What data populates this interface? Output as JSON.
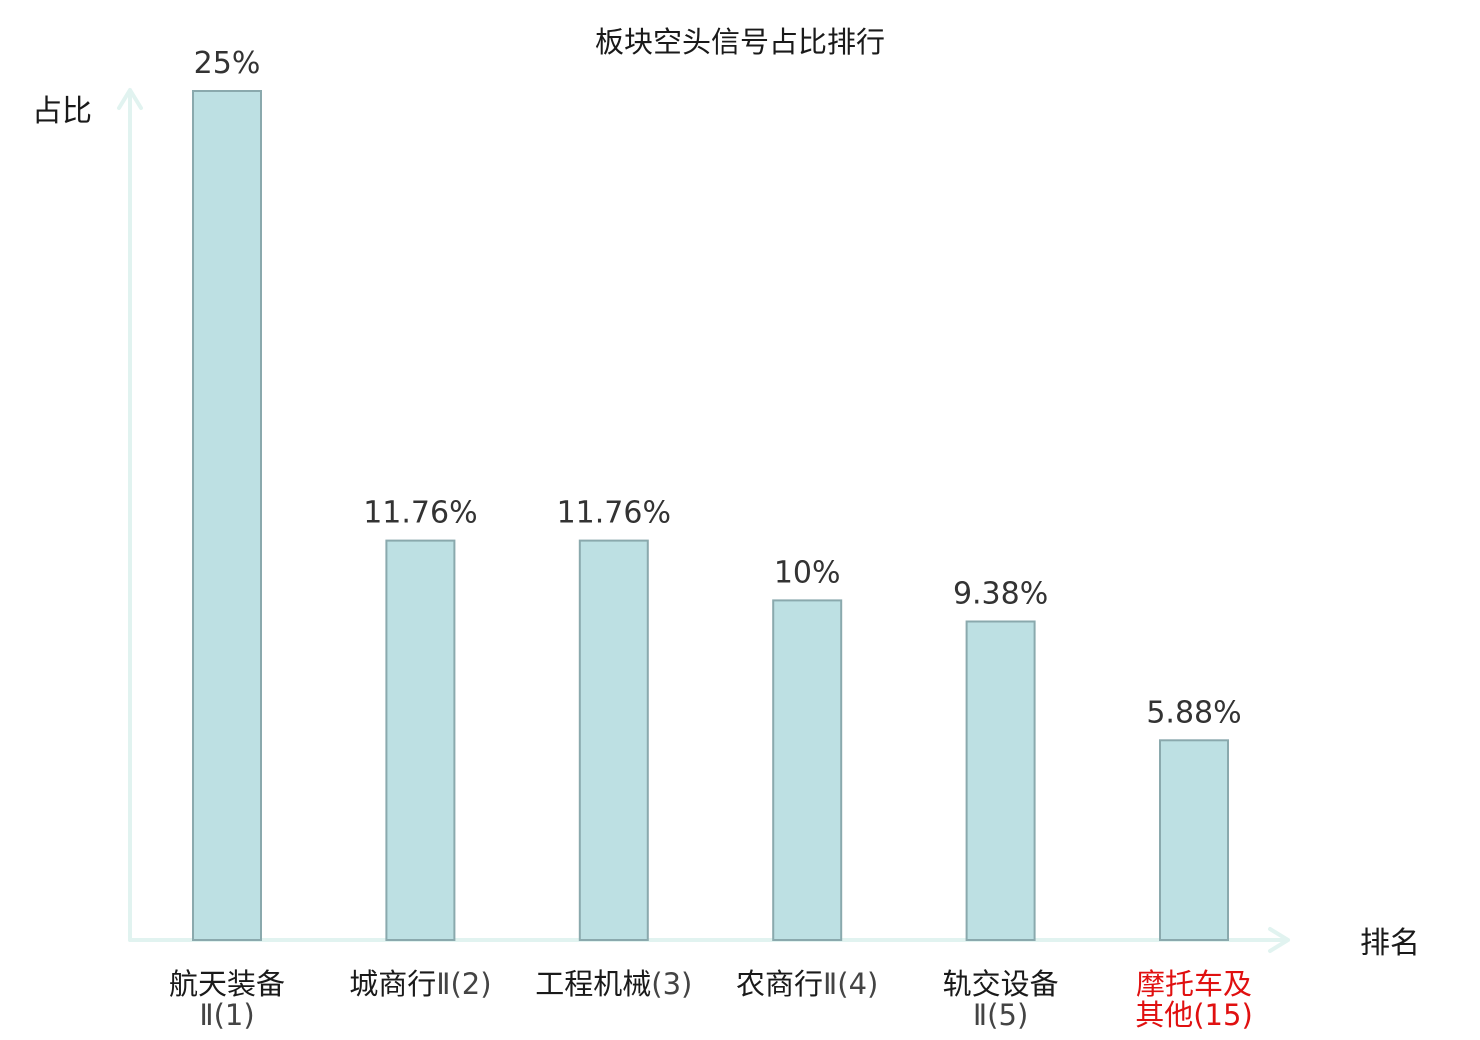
{
  "chart_data": {
    "type": "bar",
    "title": "板块空头信号占比排行",
    "ylabel": "占比",
    "xlabel": "排名",
    "ylim": [
      0,
      25
    ],
    "grid": false,
    "legend": "none",
    "bar_color": "#bde0e3",
    "bar_edge_color": "#8aa9ad",
    "axis_color": "#e1f3f0",
    "highlight_color": "#e01010",
    "categories": [
      {
        "lines": [
          {
            "name": "航天装备",
            "rank": ""
          },
          {
            "name": "",
            "rank": "Ⅱ(1)"
          }
        ],
        "highlight": false
      },
      {
        "lines": [
          {
            "name": "城商行",
            "rank": "Ⅱ(2)"
          }
        ],
        "highlight": false
      },
      {
        "lines": [
          {
            "name": "工程机械",
            "rank": "(3)"
          }
        ],
        "highlight": false
      },
      {
        "lines": [
          {
            "name": "农商行",
            "rank": "Ⅱ(4)"
          }
        ],
        "highlight": false
      },
      {
        "lines": [
          {
            "name": "轨交设备",
            "rank": ""
          },
          {
            "name": "",
            "rank": "Ⅱ(5)"
          }
        ],
        "highlight": false
      },
      {
        "lines": [
          {
            "name": "摩托车及",
            "rank": ""
          },
          {
            "name": "其他",
            "rank": "(15)"
          }
        ],
        "highlight": true
      }
    ],
    "values": [
      25,
      11.76,
      11.76,
      10,
      9.38,
      5.88
    ],
    "value_labels": [
      "25%",
      "11.76%",
      "11.76%",
      "10%",
      "9.38%",
      "5.88%"
    ]
  }
}
